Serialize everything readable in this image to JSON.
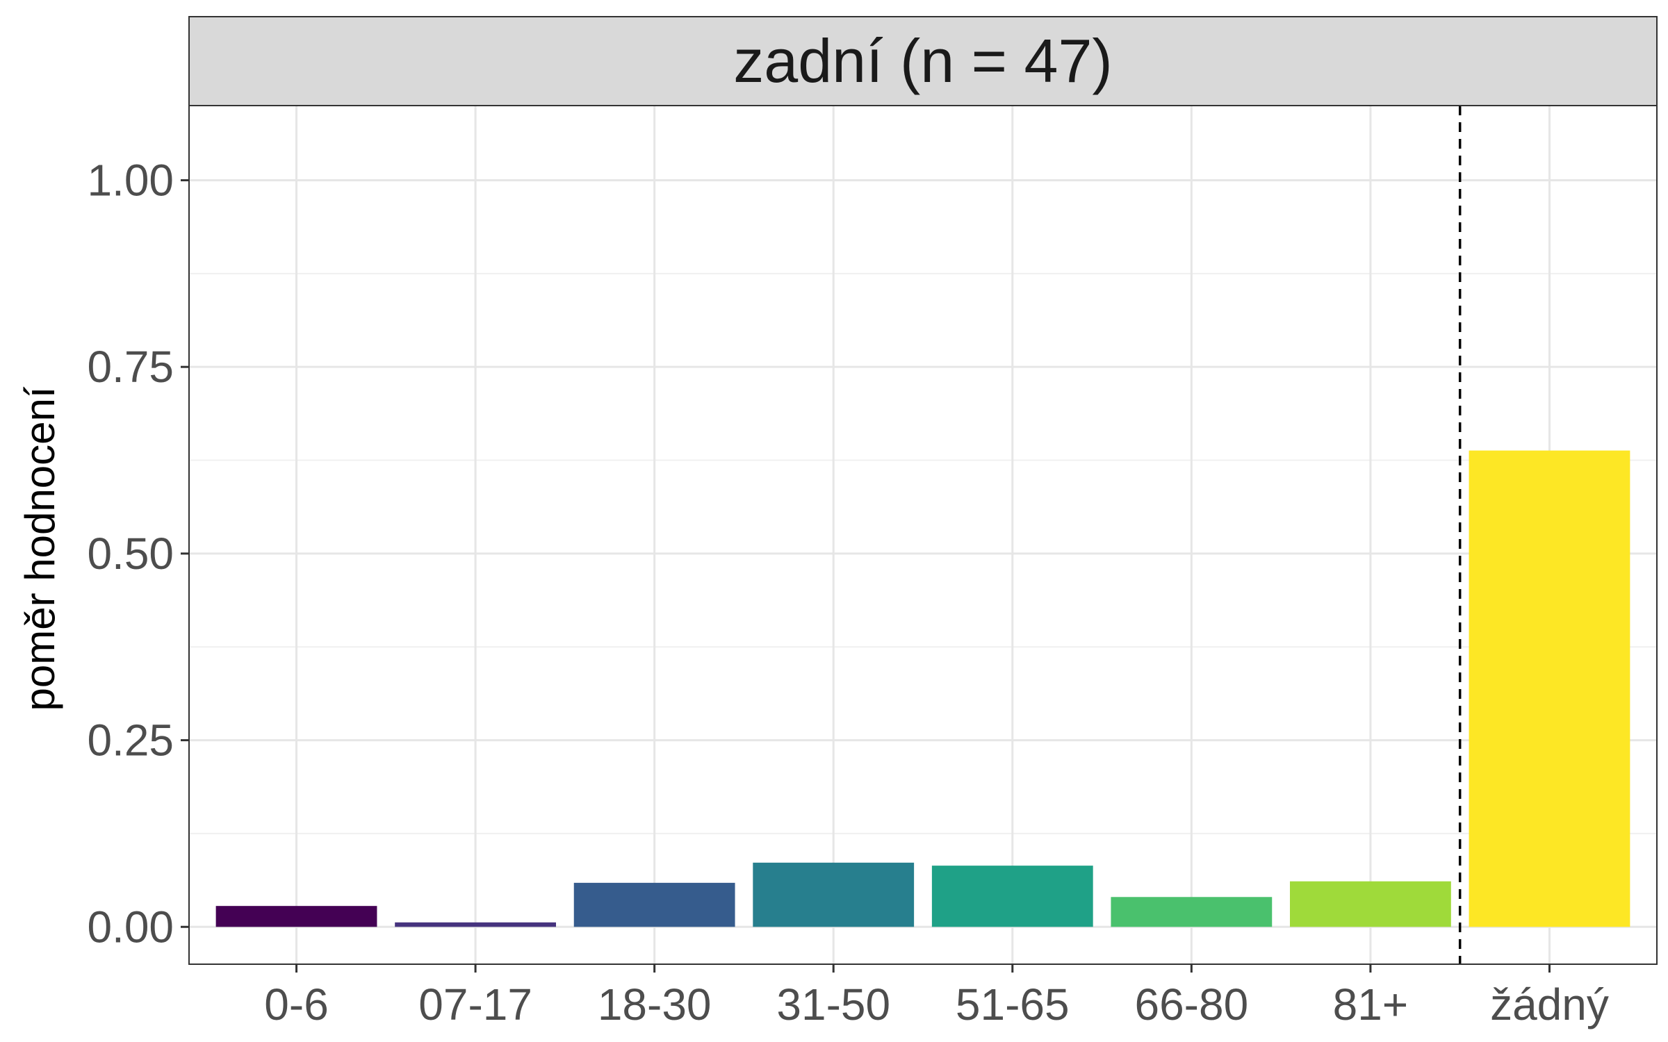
{
  "chart_data": {
    "type": "bar",
    "facet_label": "zadní (n = 47)",
    "ylabel": "poměr hodnocení",
    "xlabel": "",
    "categories": [
      "0-6",
      "07-17",
      "18-30",
      "31-50",
      "51-65",
      "66-80",
      "81+",
      "žádný"
    ],
    "values": [
      0.028,
      0.006,
      0.059,
      0.086,
      0.082,
      0.04,
      0.061,
      0.638
    ],
    "colors": [
      "#440154",
      "#46337E",
      "#365C8D",
      "#277F8E",
      "#1FA187",
      "#4AC16D",
      "#9FDA3A",
      "#FDE725"
    ],
    "ylim": [
      -0.05,
      1.1
    ],
    "y_ticks": [
      "0.00",
      "0.25",
      "0.50",
      "0.75",
      "1.00"
    ],
    "y_tick_values": [
      0,
      0.25,
      0.5,
      0.75,
      1.0
    ],
    "y_minor_values": [
      0.125,
      0.375,
      0.625,
      0.875
    ],
    "reference_line_after_category": "81+",
    "grid": true,
    "legend": "none"
  }
}
